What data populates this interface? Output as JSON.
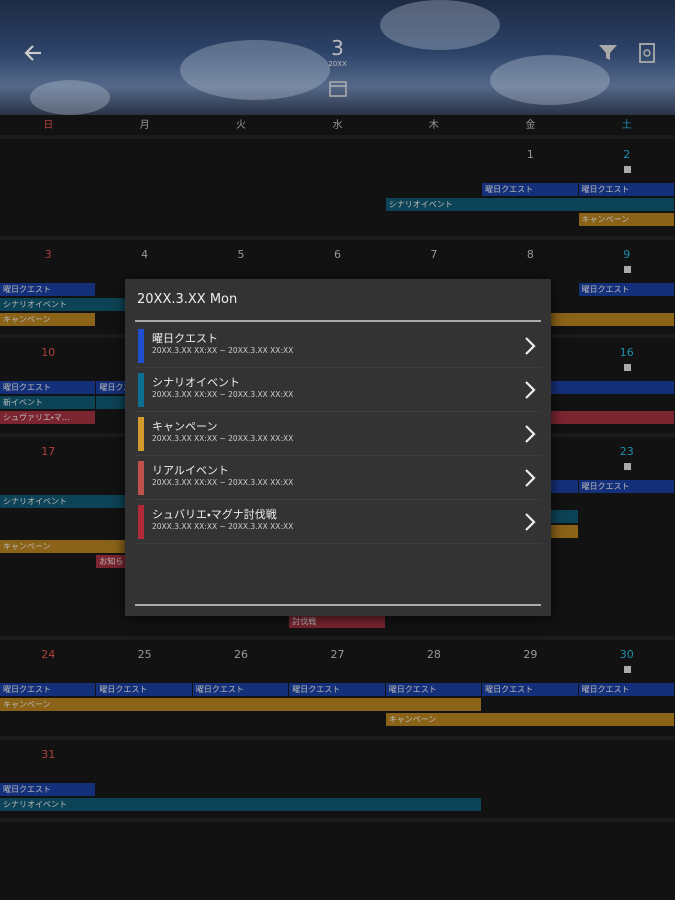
{
  "header": {
    "month": "3",
    "year": "20XX"
  },
  "weekdays": [
    "日",
    "月",
    "火",
    "水",
    "木",
    "金",
    "土"
  ],
  "weeks": [
    {
      "days": [
        "1",
        "2"
      ],
      "events": [
        "曜日クエスト",
        "曜日クエスト",
        "シナリオイベント",
        "キャンペーン"
      ]
    },
    {
      "days": [
        "3",
        "4",
        "5",
        "6",
        "7",
        "8",
        "9"
      ],
      "events": [
        "曜日クエスト",
        "曜日クエスト",
        "シナリオイベント",
        "キャンペーン"
      ]
    },
    {
      "days": [
        "10",
        "16"
      ],
      "events": [
        "曜日クエスト",
        "曜日クエスト",
        "新イベント",
        "シュヴァリエ・マ…"
      ]
    },
    {
      "days": [
        "17",
        "23"
      ],
      "events": [
        "曜日クエスト",
        "シナリオイベント",
        "キャンペーン",
        "お知ら",
        "討伐戦"
      ]
    },
    {
      "days": [
        "24",
        "25",
        "26",
        "27",
        "28",
        "29",
        "30"
      ],
      "events": [
        "曜日クエスト",
        "曜日クエスト",
        "曜日クエスト",
        "曜日クエスト",
        "曜日クエスト",
        "曜日クエスト",
        "曜日クエスト",
        "キャンペーン",
        "キャンペーン"
      ]
    },
    {
      "days": [
        "31"
      ],
      "events": [
        "曜日クエスト",
        "シナリオイベント"
      ]
    }
  ],
  "dialog": {
    "title": "20XX.3.XX Mon",
    "items": [
      {
        "name": "曜日クエスト",
        "period": "20XX.3.XX  XX:XX ~ 20XX.3.XX  XX:XX"
      },
      {
        "name": "シナリオイベント",
        "period": "20XX.3.XX  XX:XX ~ 20XX.3.XX  XX:XX"
      },
      {
        "name": "キャンペーン",
        "period": "20XX.3.XX  XX:XX ~ 20XX.3.XX  XX:XX"
      },
      {
        "name": "リアルイベント",
        "period": "20XX.3.XX  XX:XX ~ 20XX.3.XX  XX:XX"
      },
      {
        "name": "シュバリエ・マグナ討伐戦",
        "period": "20XX.3.XX  XX:XX ~ 20XX.3.XX  XX:XX"
      }
    ]
  }
}
